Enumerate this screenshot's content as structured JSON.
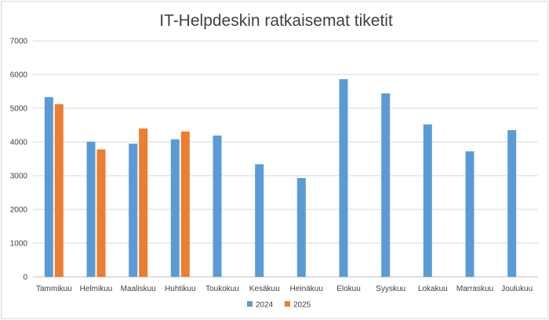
{
  "chart_data": {
    "type": "bar",
    "title": "IT-Helpdeskin ratkaisemat tiketit",
    "xlabel": "",
    "ylabel": "",
    "categories": [
      "Tammikuu",
      "Helmikuu",
      "Maaliskuu",
      "Huhtikuu",
      "Toukokuu",
      "Kesäkuu",
      "Heinäkuu",
      "Elokuu",
      "Syyskuu",
      "Lokakuu",
      "Marraskuu",
      "Joulukuu"
    ],
    "series": [
      {
        "name": "2024",
        "color": "#5b9bd5",
        "values": [
          5330,
          4010,
          3950,
          4080,
          4190,
          3340,
          2930,
          5860,
          5440,
          4520,
          3720,
          4350
        ]
      },
      {
        "name": "2025",
        "color": "#ed7d31",
        "values": [
          5120,
          3780,
          4400,
          4310,
          null,
          null,
          null,
          null,
          null,
          null,
          null,
          null
        ]
      }
    ],
    "ylim": [
      0,
      7000
    ],
    "yticks": [
      "0",
      "1000",
      "2000",
      "3000",
      "4000",
      "5000",
      "6000",
      "7000"
    ],
    "grid": true,
    "legend": "bottom"
  }
}
